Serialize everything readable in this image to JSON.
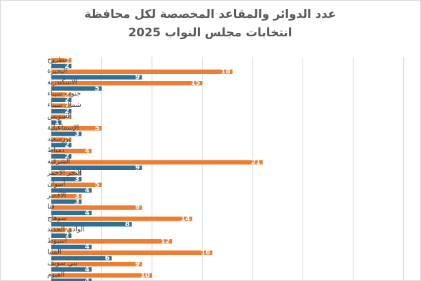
{
  "chart_data": {
    "type": "bar",
    "orientation": "horizontal",
    "title_line1": "عدد الدوائر والمقاعد المخصصة لكل محافظة",
    "title_line2": "انتخابات مجلس النواب 2025",
    "xlim": [
      0,
      36
    ],
    "grid": true,
    "colors": {
      "seats": "#ED7D31",
      "districts": "#2E6F96"
    },
    "categories": [
      "مطروح",
      "البحيرة",
      "الاسكندرية",
      "جنوب سيناء",
      "شمال سيناء",
      "السويس",
      "الإسماعيلية",
      "بورسعيد",
      "دمياط",
      "الشرقية",
      "البحر الأحمر",
      "أسوان",
      "الأقصر",
      "قنا",
      "سوهاج",
      "الوادي الجديد",
      "أسيوط",
      "المنيا",
      "بني سويف",
      "الفيوم"
    ],
    "series": [
      {
        "key": "seats",
        "values": [
          2,
          18,
          15,
          2,
          2,
          2,
          5,
          2,
          4,
          21,
          3,
          5,
          3,
          9,
          14,
          2,
          12,
          16,
          9,
          10
        ]
      },
      {
        "key": "districts",
        "values": [
          2,
          9,
          5,
          2,
          2,
          1,
          3,
          2,
          2,
          9,
          3,
          4,
          3,
          4,
          8,
          2,
          4,
          6,
          4,
          4
        ]
      }
    ]
  }
}
